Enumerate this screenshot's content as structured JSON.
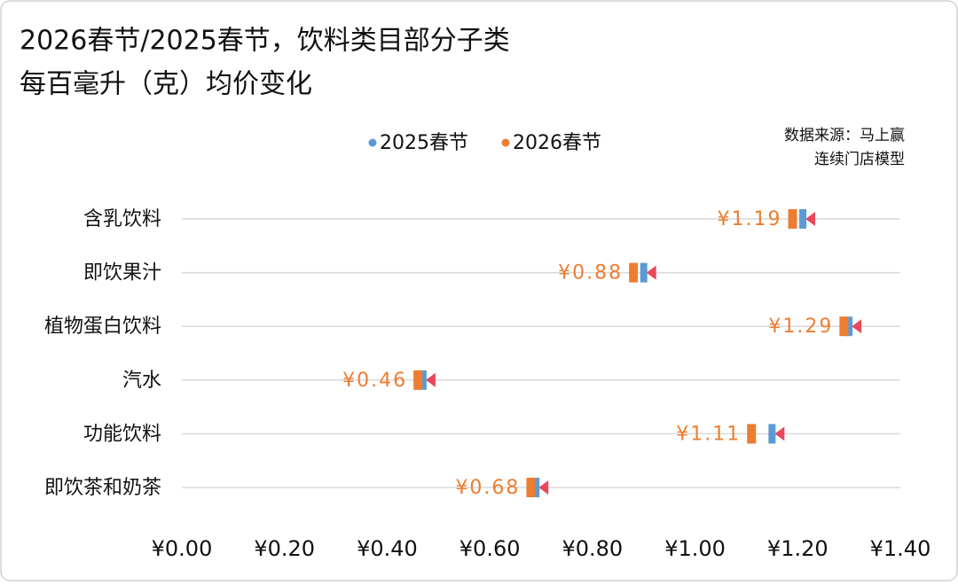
{
  "chart_data": {
    "type": "dumbbell",
    "title": [
      "2026春节/2025春节，饮料类目部分子类",
      "每百毫升（克）均价变化"
    ],
    "source": [
      "数据来源：马上赢",
      "连续门店模型"
    ],
    "categories": [
      "含乳饮料",
      "即饮果汁",
      "植物蛋白饮料",
      "汽水",
      "功能饮料",
      "即饮茶和奶茶"
    ],
    "series": [
      {
        "name": "2025春节",
        "color": "#5b9bd5",
        "values": [
          1.21,
          0.9,
          1.3,
          0.47,
          1.15,
          0.69
        ]
      },
      {
        "name": "2026春节",
        "color": "#ed7d31",
        "values": [
          1.19,
          0.88,
          1.29,
          0.46,
          1.11,
          0.68
        ],
        "value_labels": [
          "¥1.19",
          "¥0.88",
          "¥1.29",
          "¥0.46",
          "¥1.11",
          "¥0.68"
        ]
      }
    ],
    "arrow_color": "#e8485c",
    "xlim": [
      0,
      1.4
    ],
    "xticks": [
      {
        "value": 0,
        "label": "¥0.00"
      },
      {
        "value": 0.2,
        "label": "¥0.20"
      },
      {
        "value": 0.4,
        "label": "¥0.40"
      },
      {
        "value": 0.6,
        "label": "¥0.60"
      },
      {
        "value": 0.8,
        "label": "¥0.80"
      },
      {
        "value": 1.0,
        "label": "¥1.00"
      },
      {
        "value": 1.2,
        "label": "¥1.20"
      },
      {
        "value": 1.4,
        "label": "¥1.40"
      }
    ],
    "grid": true,
    "legend": "top"
  }
}
